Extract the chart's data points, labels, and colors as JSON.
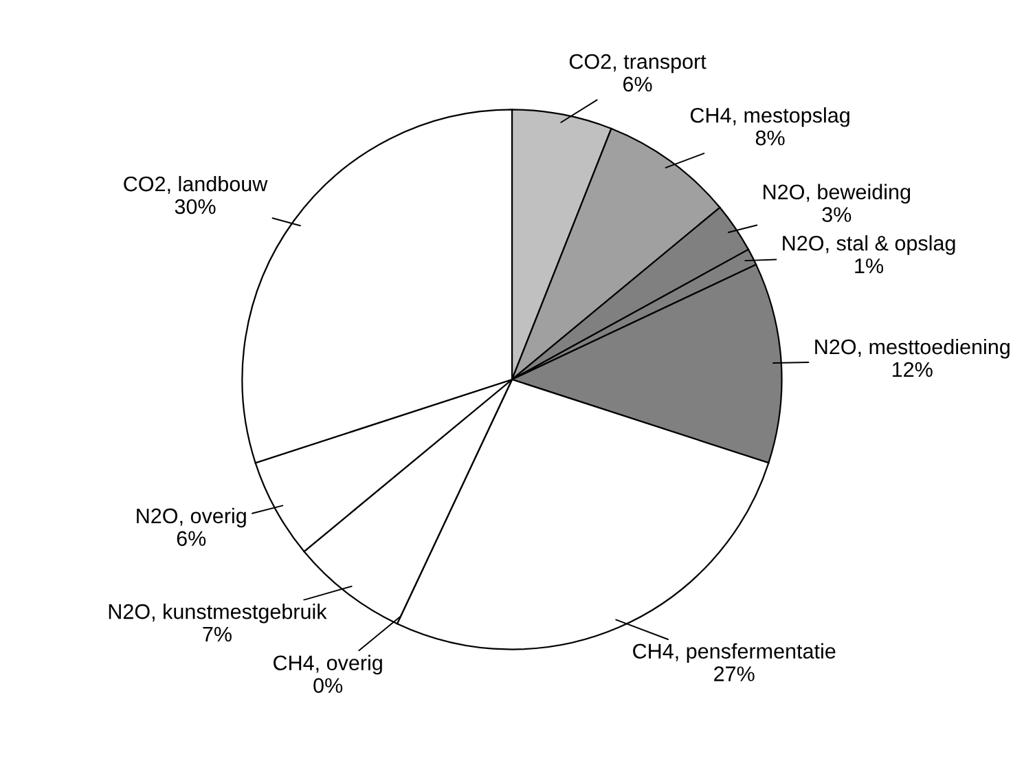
{
  "chart_data": {
    "type": "pie",
    "categories": [
      "CO2, transport",
      "CH4, mestopslag",
      "N2O, beweiding",
      "N2O, stal & opslag",
      "N2O, mesttoediening",
      "CH4, pensfermentatie",
      "CH4, overig",
      "N2O, kunstmestgebruik",
      "N2O, overig",
      "CO2, landbouw"
    ],
    "values": [
      6,
      8,
      3,
      1,
      12,
      27,
      0,
      7,
      6,
      30
    ],
    "colors": [
      "#c0c0c0",
      "#a0a0a0",
      "#808080",
      "#808080",
      "#808080",
      "#ffffff",
      "#ffffff",
      "#ffffff",
      "#ffffff",
      "#ffffff"
    ],
    "value_labels": [
      "6%",
      "8%",
      "3%",
      "1%",
      "12%",
      "27%",
      "0%",
      "7%",
      "6%",
      "30%"
    ]
  }
}
